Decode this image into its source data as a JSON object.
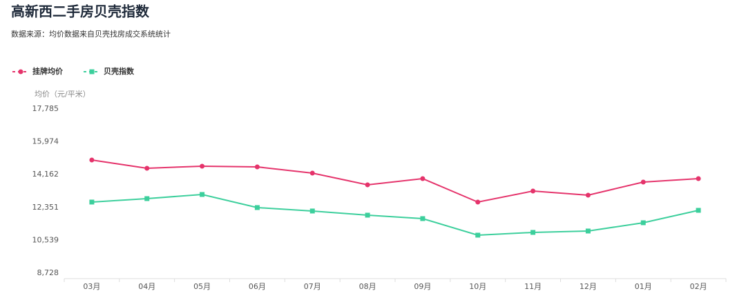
{
  "chart_data": {
    "type": "line",
    "title": "高新西二手房贝壳指数",
    "subtitle": "数据来源：均价数据来自贝壳找房成交系统统计",
    "y_label": "均价（元/平米）",
    "categories": [
      "03月",
      "04月",
      "05月",
      "06月",
      "07月",
      "08月",
      "09月",
      "10月",
      "11月",
      "12月",
      "01月",
      "02月"
    ],
    "series": [
      {
        "name": "挂牌均价",
        "color": "#e5336b",
        "marker": "circle",
        "values": [
          14970,
          14513,
          14627,
          14589,
          14246,
          13600,
          13942,
          12648,
          13257,
          13029,
          13752,
          13942
        ]
      },
      {
        "name": "贝壳指数",
        "color": "#3ccf9c",
        "marker": "square",
        "values": [
          12648,
          12838,
          13067,
          12344,
          12154,
          11925,
          11735,
          10822,
          10974,
          11050,
          11507,
          12192
        ]
      }
    ],
    "ylim": [
      8728,
      17785
    ],
    "yticks": [
      {
        "value": 17785,
        "label": "17,785"
      },
      {
        "value": 15974,
        "label": "15,974"
      },
      {
        "value": 14162,
        "label": "14,162"
      },
      {
        "value": 12351,
        "label": "12,351"
      },
      {
        "value": 10539,
        "label": "10,539"
      },
      {
        "value": 8728,
        "label": "8,728"
      }
    ],
    "grid": false,
    "legend": "top-left"
  }
}
